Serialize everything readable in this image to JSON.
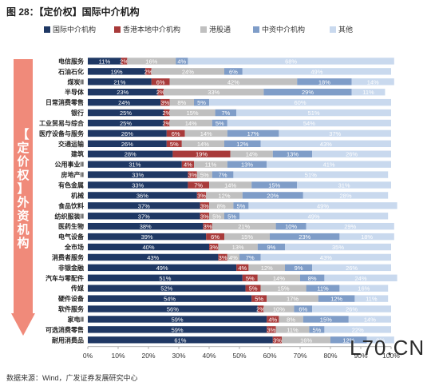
{
  "figure": {
    "title": "图 28：【定价权】国际中介机构",
    "source": "数据来源：Wind，广发证券发展研究中心",
    "watermark": "L70.CN",
    "side_label": [
      "【",
      "定",
      "价",
      "权",
      "】",
      "外",
      "资",
      "机",
      "构"
    ]
  },
  "colors": {
    "series": [
      "#1f3864",
      "#a83a3a",
      "#c0c0c0",
      "#7f9dc8",
      "#c9d9ee"
    ],
    "arrow": "#f08a7a"
  },
  "chart_data": {
    "type": "bar",
    "orientation": "horizontal",
    "stacked": true,
    "percent": true,
    "title": "",
    "xlabel": "",
    "ylabel": "",
    "xlim": [
      0,
      100
    ],
    "x_ticks": [
      "0%",
      "10%",
      "20%",
      "30%",
      "40%",
      "50%",
      "60%",
      "70%",
      "80%",
      "90%",
      "100%"
    ],
    "grid": false,
    "legend_position": "top",
    "categories": [
      "电信服务",
      "石油石化",
      "煤炭II",
      "半导体",
      "日常消费零售",
      "银行",
      "工业贸易与综合",
      "医疗设备与服务",
      "交通运输",
      "建筑",
      "公用事业II",
      "房地产II",
      "有色金属",
      "机械",
      "食品饮料",
      "纺织服装II",
      "医药生物",
      "电气设备",
      "全市场",
      "消费者服务",
      "非银金融",
      "汽车与零配件",
      "传媒",
      "硬件设备",
      "软件服务",
      "家电II",
      "可选消费零售",
      "耐用消费品"
    ],
    "series": [
      {
        "name": "国际中介机构",
        "values": [
          11,
          19,
          21,
          23,
          24,
          25,
          25,
          26,
          26,
          28,
          31,
          33,
          33,
          36,
          37,
          37,
          38,
          39,
          40,
          43,
          49,
          51,
          52,
          54,
          56,
          59,
          59,
          61
        ],
        "labels": [
          "11%",
          "19%",
          "21%",
          "23%",
          "24%",
          "25%",
          "25%",
          "26%",
          "26%",
          "28%",
          "31%",
          "33%",
          "33%",
          "36%",
          "37%",
          "37%",
          "38%",
          "39%",
          "40%",
          "43%",
          "49%",
          "51%",
          "52%",
          "54%",
          "56%",
          "59%",
          "59%",
          "61%"
        ]
      },
      {
        "name": "香港本地中介机构",
        "values": [
          2,
          2,
          6,
          2,
          3,
          2,
          2,
          6,
          5,
          19,
          4,
          3,
          7,
          3,
          3,
          3,
          3,
          6,
          3,
          3,
          4,
          5,
          5,
          5,
          2,
          4,
          3,
          3
        ],
        "labels": [
          "2%",
          "2%",
          "6%",
          "2%",
          "3%",
          "2%",
          "2%",
          "6%",
          "5%",
          "19%",
          "4%",
          "3%",
          "7%",
          "3%",
          "3%",
          "3%",
          "3%",
          "6%",
          "3%",
          "3%",
          "4%",
          "5%",
          "5%",
          "5%",
          "2%",
          "4%",
          "3%",
          "3%"
        ]
      },
      {
        "name": "港股通",
        "values": [
          16,
          24,
          42,
          33,
          8,
          15,
          14,
          14,
          14,
          14,
          11,
          5,
          14,
          12,
          8,
          5,
          21,
          15,
          13,
          4,
          12,
          14,
          15,
          17,
          10,
          8,
          11,
          16
        ],
        "labels": [
          "16%",
          "24%",
          "42%",
          "33%",
          "8%",
          "15%",
          "14%",
          "14%",
          "14%",
          "14%",
          "11%",
          "5%",
          "14%",
          "12%",
          "8%",
          "5%",
          "21%",
          "15%",
          "13%",
          "4%",
          "12%",
          "14%",
          "15%",
          "17%",
          "10%",
          "8%",
          "11%",
          "16%"
        ]
      },
      {
        "name": "中资中介机构",
        "values": [
          4,
          6,
          18,
          29,
          5,
          7,
          5,
          17,
          12,
          13,
          13,
          7,
          15,
          20,
          5,
          5,
          10,
          23,
          9,
          7,
          9,
          8,
          11,
          12,
          6,
          15,
          5,
          12
        ],
        "labels": [
          "4%",
          "6%",
          "18%",
          "29%",
          "5%",
          "7%",
          "5%",
          "17%",
          "12%",
          "13%",
          "13%",
          "7%",
          "15%",
          "20%",
          "5%",
          "5%",
          "10%",
          "23%",
          "9%",
          "7%",
          "9%",
          "8%",
          "11%",
          "12%",
          "6%",
          "15%",
          "5%",
          "12%"
        ]
      },
      {
        "name": "其他",
        "values": [
          68,
          49,
          14,
          11,
          60,
          51,
          54,
          37,
          43,
          26,
          41,
          51,
          31,
          28,
          49,
          49,
          29,
          18,
          35,
          43,
          26,
          24,
          16,
          11,
          26,
          14,
          22,
          9
        ],
        "labels": [
          "68%",
          "49%",
          "14%",
          "11%",
          "60%",
          "51%",
          "54%",
          "37%",
          "43%",
          "26%",
          "41%",
          "51%",
          "31%",
          "28%",
          "49%",
          "49%",
          "29%",
          "18%",
          "35%",
          "43%",
          "26%",
          "24%",
          "16%",
          "11%",
          "26%",
          "14%",
          "22%",
          "9%"
        ]
      }
    ]
  }
}
